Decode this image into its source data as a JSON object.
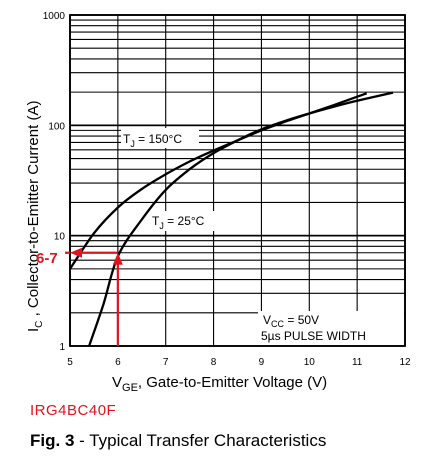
{
  "chart_data": {
    "type": "line",
    "xlabel_main": "V",
    "xlabel_sub": "GE",
    "xlabel_rest": ", Gate-to-Emitter Voltage (V)",
    "ylabel_main": "I",
    "ylabel_sub": "C",
    "ylabel_rest": " , Collector-to-Emitter Current (A)",
    "xlim": [
      5,
      12
    ],
    "ylim": [
      1,
      1000
    ],
    "y_scale": "log",
    "grid": true,
    "x_ticks": [
      "5",
      "6",
      "7",
      "8",
      "9",
      "10",
      "11",
      "12"
    ],
    "y_ticks": [
      "1",
      "10",
      "100",
      "1000"
    ],
    "series": [
      {
        "name_main": "T",
        "name_sub": "J",
        "name_rest": " = 150°C",
        "x": [
          5.0,
          5.5,
          6.0,
          6.5,
          7.0,
          7.5,
          8.0,
          8.5,
          9.0,
          9.5,
          10.0,
          10.5,
          11.2
        ],
        "y": [
          5.0,
          10.5,
          18.0,
          26.5,
          36.0,
          47.0,
          59.0,
          73.0,
          90.0,
          108.0,
          128.0,
          152.0,
          195.0
        ]
      },
      {
        "name_main": "T",
        "name_sub": "J",
        "name_rest": " = 25°C",
        "x": [
          5.4,
          5.7,
          6.0,
          6.5,
          7.0,
          7.5,
          8.0,
          8.5,
          9.0,
          9.5,
          10.0,
          10.5,
          11.0,
          11.75
        ],
        "y": [
          1.0,
          2.4,
          6.5,
          14.0,
          26.0,
          40.0,
          56.0,
          73.0,
          92.0,
          110.0,
          128.0,
          147.0,
          167.0,
          198.0
        ]
      }
    ],
    "conditions": [
      {
        "main": "V",
        "sub": "CC",
        "rest": " = 50V"
      },
      {
        "main": "5µs PULSE WIDTH",
        "sub": "",
        "rest": ""
      }
    ],
    "annotation": {
      "label": "6-7",
      "x": 6,
      "y": 7
    }
  },
  "footer": {
    "part_number": "IRG4BC40F",
    "caption_bold": "Fig. 3",
    "caption_rest": " - Typical Transfer Characteristics"
  },
  "colors": {
    "annotation": "#e0141c",
    "line": "#000000"
  }
}
